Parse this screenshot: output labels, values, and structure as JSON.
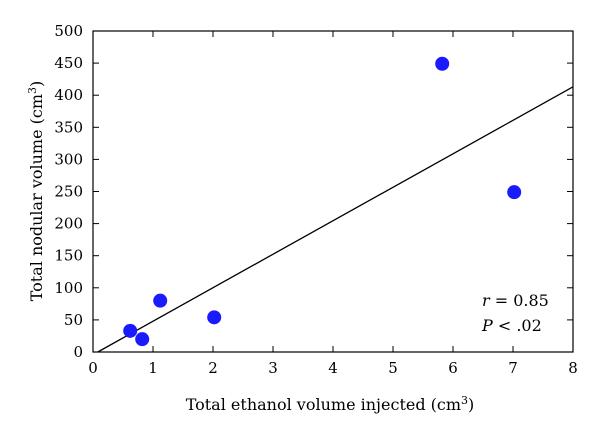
{
  "chart_data": {
    "type": "scatter",
    "xlabel": "Total ethanol volume injected (cm",
    "xlabel_sup": "3",
    "xlabel_end": ")",
    "ylabel": "Total nodular volume (cm",
    "ylabel_sup": "3",
    "ylabel_end": ")",
    "xlim": [
      0,
      8
    ],
    "ylim": [
      0,
      500
    ],
    "x_ticks": [
      0,
      1,
      2,
      3,
      4,
      5,
      6,
      7,
      8
    ],
    "y_ticks": [
      0,
      50,
      100,
      150,
      200,
      250,
      300,
      350,
      400,
      450,
      500
    ],
    "x_tick_labels": [
      "0",
      "1",
      "2",
      "3",
      "4",
      "5",
      "6",
      "7",
      "8"
    ],
    "y_tick_labels": [
      "0",
      "50",
      "100",
      "150",
      "200",
      "250",
      "300",
      "350",
      "400",
      "450",
      "500"
    ],
    "points": [
      {
        "x": 0.62,
        "y": 33
      },
      {
        "x": 0.82,
        "y": 20
      },
      {
        "x": 1.12,
        "y": 80
      },
      {
        "x": 2.02,
        "y": 54
      },
      {
        "x": 5.82,
        "y": 449
      },
      {
        "x": 7.02,
        "y": 249
      }
    ],
    "fit_line": {
      "x": [
        0.08,
        8
      ],
      "y": [
        0,
        413
      ]
    },
    "marker_color": "#1a1aff",
    "line_color": "#000000",
    "grid": false,
    "annotations": {
      "r_var": "r",
      "r_value": " = 0.85",
      "p_var": "P",
      "p_value": " < .02"
    }
  }
}
